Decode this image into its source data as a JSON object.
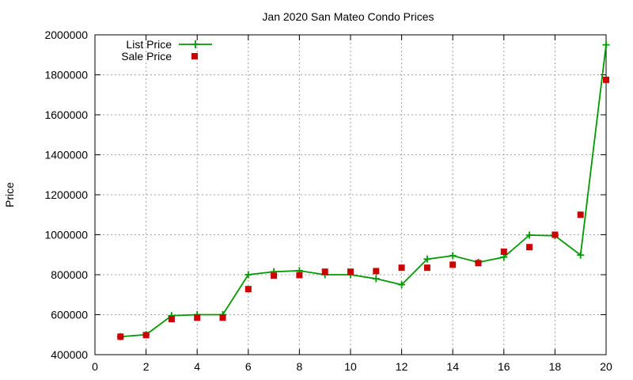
{
  "chart_data": {
    "type": "line",
    "title": "Jan 2020 San Mateo Condo Prices",
    "xlabel": "",
    "ylabel": "Price",
    "xlim": [
      0,
      20
    ],
    "ylim": [
      400000,
      2000000
    ],
    "xticks": [
      0,
      2,
      4,
      6,
      8,
      10,
      12,
      14,
      16,
      18,
      20
    ],
    "yticks": [
      400000,
      600000,
      800000,
      1000000,
      1200000,
      1400000,
      1600000,
      1800000,
      2000000
    ],
    "grid": true,
    "legend_position": "top-left",
    "x": [
      1,
      2,
      3,
      4,
      5,
      6,
      7,
      8,
      9,
      10,
      11,
      12,
      13,
      14,
      15,
      16,
      17,
      18,
      19,
      20
    ],
    "series": [
      {
        "name": "List Price",
        "kind": "line",
        "marker": "plus",
        "color": "#009900",
        "values": [
          490000,
          500000,
          595000,
          600000,
          600000,
          800000,
          815000,
          820000,
          800000,
          800000,
          780000,
          750000,
          878000,
          895000,
          862000,
          888000,
          998000,
          995000,
          898000,
          1950000
        ]
      },
      {
        "name": "Sale Price",
        "kind": "points",
        "marker": "square",
        "color": "#cc0000",
        "values": [
          490000,
          498000,
          578000,
          585000,
          585000,
          728000,
          795000,
          798000,
          815000,
          815000,
          818000,
          835000,
          835000,
          850000,
          858000,
          915000,
          938000,
          1000000,
          1100000,
          1775000
        ]
      }
    ]
  }
}
